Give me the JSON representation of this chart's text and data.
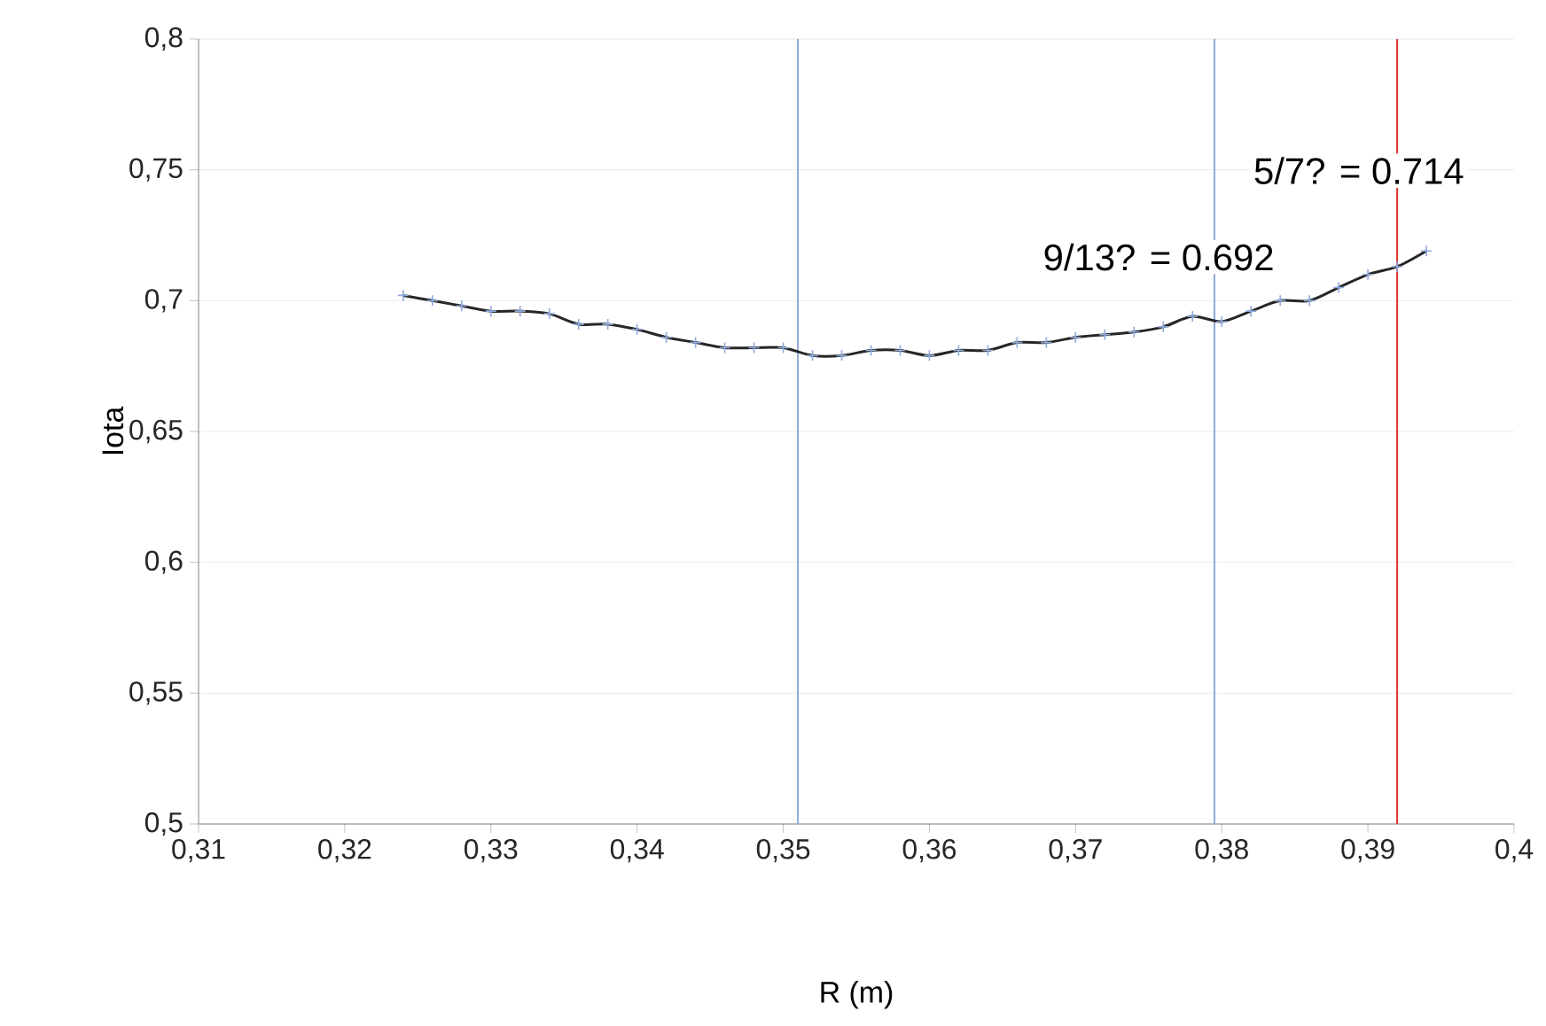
{
  "chart_data": {
    "type": "line",
    "xlabel": "R (m)",
    "ylabel": "Iota",
    "x": [
      0.324,
      0.326,
      0.328,
      0.33,
      0.332,
      0.334,
      0.336,
      0.338,
      0.34,
      0.342,
      0.344,
      0.346,
      0.348,
      0.35,
      0.352,
      0.354,
      0.356,
      0.358,
      0.36,
      0.362,
      0.364,
      0.366,
      0.368,
      0.37,
      0.372,
      0.374,
      0.376,
      0.378,
      0.38,
      0.382,
      0.384,
      0.386,
      0.388,
      0.39,
      0.392,
      0.394
    ],
    "series": [
      {
        "color": "#262626",
        "values": [
          0.702,
          0.7,
          0.698,
          0.696,
          0.696,
          0.695,
          0.691,
          0.691,
          0.689,
          0.686,
          0.684,
          0.682,
          0.682,
          0.682,
          0.679,
          0.679,
          0.681,
          0.681,
          0.679,
          0.681,
          0.681,
          0.684,
          0.684,
          0.686,
          0.687,
          0.688,
          0.69,
          0.694,
          0.692,
          0.696,
          0.7,
          0.7,
          0.705,
          0.71,
          0.713,
          0.719
        ]
      }
    ],
    "marker": "cross",
    "xlim": [
      0.31,
      0.4
    ],
    "ylim": [
      0.5,
      0.8
    ],
    "xticks": [
      {
        "value": 0.31,
        "label": "0,31"
      },
      {
        "value": 0.32,
        "label": "0,32"
      },
      {
        "value": 0.33,
        "label": "0,33"
      },
      {
        "value": 0.34,
        "label": "0,34"
      },
      {
        "value": 0.35,
        "label": "0,35"
      },
      {
        "value": 0.36,
        "label": "0,36"
      },
      {
        "value": 0.37,
        "label": "0,37"
      },
      {
        "value": 0.38,
        "label": "0,38"
      },
      {
        "value": 0.39,
        "label": "0,39"
      },
      {
        "value": 0.4,
        "label": "0,4"
      }
    ],
    "yticks": [
      {
        "value": 0.5,
        "label": "0,5"
      },
      {
        "value": 0.55,
        "label": "0,55"
      },
      {
        "value": 0.6,
        "label": "0,6"
      },
      {
        "value": 0.65,
        "label": "0,65"
      },
      {
        "value": 0.7,
        "label": "0,7"
      },
      {
        "value": 0.75,
        "label": "0,75"
      },
      {
        "value": 0.8,
        "label": "0,8"
      }
    ],
    "grid": "y",
    "ref_lines": [
      {
        "axis": "x",
        "value": 0.351,
        "color": "#8eaadb"
      },
      {
        "axis": "x",
        "value": 0.3795,
        "color": "#8eaadb"
      },
      {
        "axis": "x",
        "value": 0.392,
        "color": "#e03030"
      }
    ],
    "annotations": [
      "9/13? = 0.692",
      "5/7? = 0.714"
    ]
  }
}
